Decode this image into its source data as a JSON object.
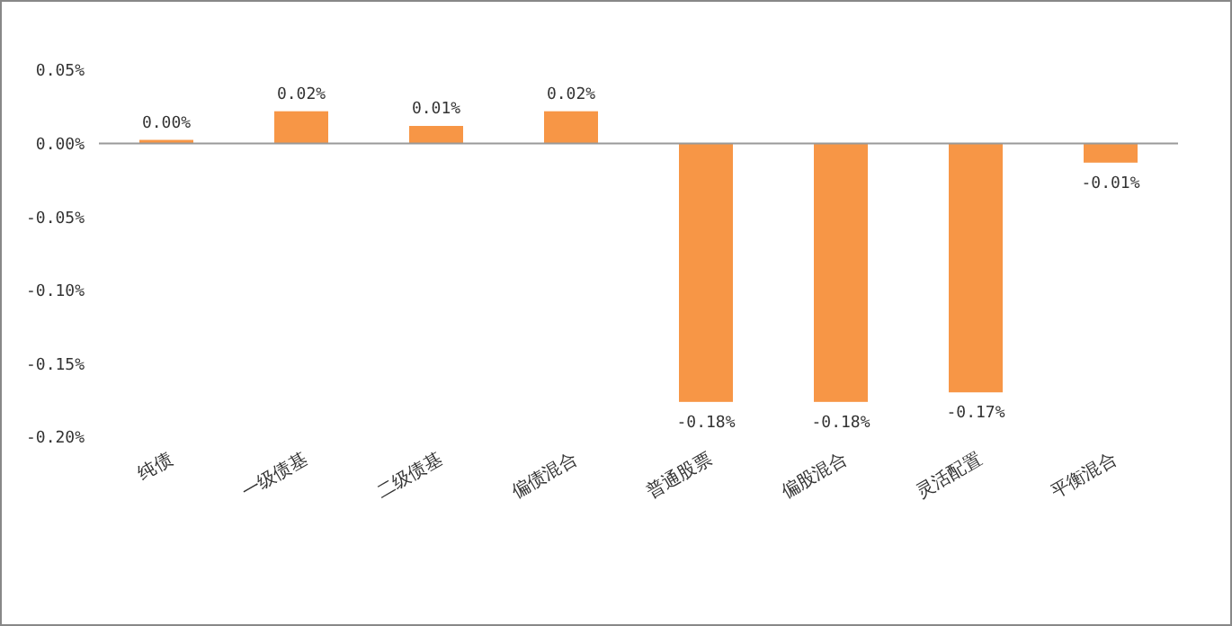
{
  "chart_data": {
    "type": "bar",
    "categories": [
      "纯债",
      "一级债基",
      "二级债基",
      "偏债混合",
      "普通股票",
      "偏股混合",
      "灵活配置",
      "平衡混合"
    ],
    "values": [
      0.0025,
      0.022,
      0.012,
      0.022,
      -0.176,
      -0.176,
      -0.1695,
      -0.013
    ],
    "value_labels": [
      "0.00%",
      "0.02%",
      "0.01%",
      "0.02%",
      "-0.18%",
      "-0.18%",
      "-0.17%",
      "-0.01%"
    ],
    "color": "#f79646",
    "ylim": [
      -0.2,
      0.05
    ],
    "yticks": [
      {
        "value": 0.05,
        "label": "0.05%"
      },
      {
        "value": 0,
        "label": "0.00%"
      },
      {
        "value": -0.05,
        "label": "-0.05%"
      },
      {
        "value": -0.1,
        "label": "-0.10%"
      },
      {
        "value": -0.15,
        "label": "-0.15%"
      },
      {
        "value": -0.2,
        "label": "-0.20%"
      }
    ]
  }
}
